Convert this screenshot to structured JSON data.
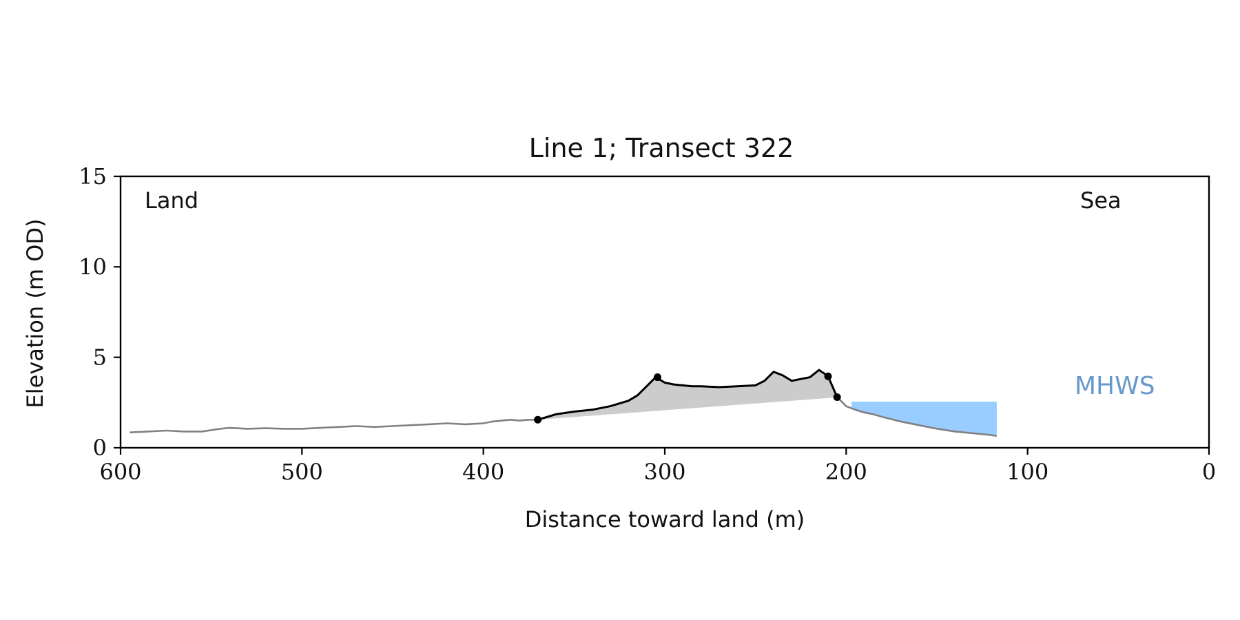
{
  "chart_data": {
    "type": "line",
    "title": "Line 1; Transect 322",
    "xlabel": "Distance toward land (m)",
    "ylabel": "Elevation (m OD)",
    "xlim": [
      600,
      0
    ],
    "ylim": [
      0,
      15
    ],
    "x_ticks": [
      600,
      500,
      400,
      300,
      200,
      100,
      0
    ],
    "y_ticks": [
      0,
      5,
      10,
      15
    ],
    "grid": false,
    "annotations": {
      "land": "Land",
      "sea": "Sea",
      "mhws": "MHWS"
    },
    "colors": {
      "profile": "#808080",
      "dune": "#000000",
      "dune_fill": "#cccccc",
      "sea_fill": "#99ccff",
      "mhws_text": "#6699cc",
      "axis": "#000000"
    },
    "series": [
      {
        "role": "full-profile",
        "x": [
          595,
          585,
          575,
          565,
          555,
          545,
          540,
          530,
          520,
          510,
          500,
          490,
          480,
          470,
          460,
          450,
          440,
          430,
          420,
          410,
          400,
          395,
          390,
          385,
          380,
          375,
          370,
          360,
          350,
          340,
          330,
          320,
          315,
          310,
          305,
          300,
          295,
          290,
          285,
          280,
          270,
          260,
          250,
          245,
          240,
          235,
          230,
          225,
          220,
          215,
          212,
          210,
          205,
          200,
          195,
          190,
          185,
          180,
          170,
          160,
          150,
          140,
          130,
          120,
          117
        ],
        "y": [
          0.85,
          0.9,
          0.95,
          0.9,
          0.9,
          1.05,
          1.1,
          1.05,
          1.08,
          1.05,
          1.05,
          1.1,
          1.15,
          1.2,
          1.15,
          1.2,
          1.25,
          1.3,
          1.35,
          1.3,
          1.35,
          1.45,
          1.5,
          1.55,
          1.5,
          1.55,
          1.55,
          1.85,
          2.0,
          2.1,
          2.3,
          2.6,
          2.9,
          3.4,
          3.9,
          3.6,
          3.5,
          3.45,
          3.4,
          3.4,
          3.35,
          3.4,
          3.45,
          3.7,
          4.2,
          4.0,
          3.7,
          3.8,
          3.9,
          4.3,
          4.1,
          3.95,
          2.8,
          2.3,
          2.1,
          1.95,
          1.85,
          1.7,
          1.45,
          1.25,
          1.05,
          0.9,
          0.8,
          0.7,
          0.65
        ]
      },
      {
        "role": "dune-section",
        "x": [
          370,
          360,
          350,
          340,
          330,
          320,
          315,
          310,
          305,
          300,
          295,
          290,
          285,
          280,
          270,
          260,
          250,
          245,
          240,
          235,
          230,
          225,
          220,
          215,
          212,
          210,
          205
        ],
        "y": [
          1.55,
          1.85,
          2.0,
          2.1,
          2.3,
          2.6,
          2.9,
          3.4,
          3.9,
          3.6,
          3.5,
          3.45,
          3.4,
          3.4,
          3.35,
          3.4,
          3.45,
          3.7,
          4.2,
          4.0,
          3.7,
          3.8,
          3.9,
          4.3,
          4.1,
          3.95,
          2.8
        ]
      }
    ],
    "key_points": [
      {
        "x": 370,
        "y": 1.55
      },
      {
        "x": 304,
        "y": 3.9
      },
      {
        "x": 210,
        "y": 3.95
      },
      {
        "x": 205,
        "y": 2.8
      }
    ],
    "dune_baseline": [
      {
        "x": 370,
        "y": 1.55
      },
      {
        "x": 210,
        "y": 2.75
      }
    ],
    "sea_region": {
      "mhws_level": 2.55,
      "x_start": 197,
      "x_end": 117,
      "profile_x": [
        197,
        190,
        185,
        180,
        170,
        160,
        150,
        140,
        130,
        120,
        117
      ],
      "profile_y": [
        2.2,
        1.95,
        1.85,
        1.7,
        1.45,
        1.25,
        1.05,
        0.9,
        0.8,
        0.7,
        0.65
      ]
    }
  }
}
